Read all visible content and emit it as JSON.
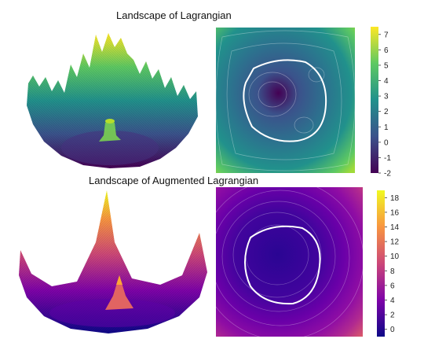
{
  "figure": {
    "top": {
      "title": "Landscape of Lagrangian",
      "colormap": "viridis",
      "colorbar": {
        "min": -2,
        "max": 7.5,
        "ticks": [
          7,
          6,
          5,
          4,
          3,
          2,
          1,
          0,
          -1,
          -2
        ]
      }
    },
    "bottom": {
      "title": "Landscape of Augmented Lagrangian",
      "colormap": "plasma",
      "colorbar": {
        "min": -1,
        "max": 19,
        "ticks": [
          18,
          16,
          14,
          12,
          10,
          8,
          6,
          4,
          2,
          0
        ]
      }
    }
  },
  "chart_data": [
    {
      "type": "surface3d",
      "title": "Landscape of Lagrangian",
      "colormap": "viridis"
    },
    {
      "type": "heatmap",
      "colormap": "viridis",
      "contours": true,
      "constraint_curve": "closed white loop",
      "colorbar_range": [
        -2,
        7.5
      ]
    },
    {
      "type": "surface3d",
      "title": "Landscape of Augmented Lagrangian",
      "colormap": "plasma"
    },
    {
      "type": "heatmap",
      "colormap": "plasma",
      "contours": true,
      "constraint_curve": "closed white loop",
      "colorbar_range": [
        -1,
        19
      ]
    }
  ]
}
